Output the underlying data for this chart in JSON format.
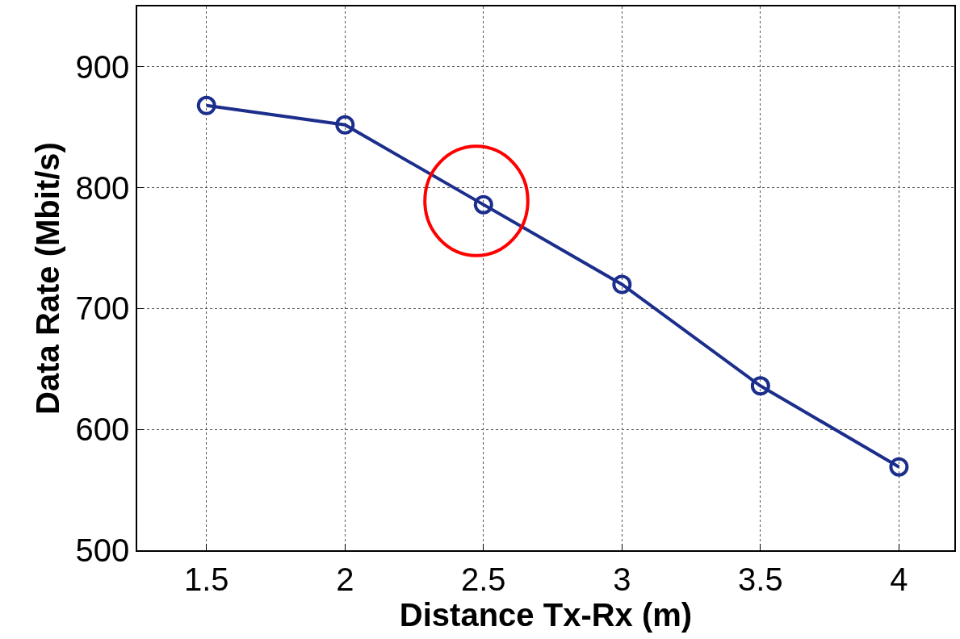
{
  "chart_data": {
    "type": "line",
    "xlabel": "Distance Tx-Rx (m)",
    "ylabel": "Data Rate (Mbit/s)",
    "x": [
      1.5,
      2,
      2.5,
      3,
      3.5,
      4
    ],
    "series": [
      {
        "color": "#1c2e8c",
        "values": [
          868,
          852,
          786,
          720,
          636,
          569
        ]
      }
    ],
    "xlim": [
      1.25,
      4.2
    ],
    "xticks": [
      1.5,
      2,
      2.5,
      3,
      3.5,
      4
    ],
    "ylim": [
      500,
      950
    ],
    "yticks": [
      500,
      600,
      700,
      800,
      900
    ],
    "grid": true,
    "marker": "circle",
    "line_style": "solid"
  }
}
